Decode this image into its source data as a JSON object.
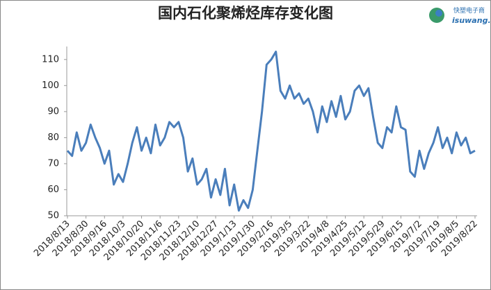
{
  "chart_data": {
    "type": "line",
    "title": "国内石化聚烯烃库存变化图",
    "logo_text": "快塑电子商",
    "logo_url": "isuwang.c",
    "categories": [
      "2018/8/13",
      null,
      null,
      null,
      "2018/8/30",
      null,
      null,
      null,
      "2018/9/16",
      null,
      null,
      null,
      "2018/10/3",
      null,
      null,
      null,
      "2018/10/20",
      null,
      null,
      null,
      "2018/11/6",
      null,
      null,
      null,
      "2018/11/23",
      null,
      null,
      null,
      "2018/12/10",
      null,
      null,
      null,
      "2018/12/27",
      null,
      null,
      null,
      "2019/1/13",
      null,
      null,
      null,
      "2019/1/30",
      null,
      null,
      null,
      "2019/2/16",
      null,
      null,
      null,
      "2019/3/5",
      null,
      null,
      null,
      "2019/3/22",
      null,
      null,
      null,
      "2019/4/8",
      null,
      null,
      null,
      "2019/4/25",
      null,
      null,
      null,
      "2019/5/12",
      null,
      null,
      null,
      "2019/5/29",
      null,
      null,
      null,
      "2019/6/15",
      null,
      null,
      null,
      "2019/7/2",
      null,
      null,
      null,
      "2019/7/19",
      null,
      null,
      null,
      "2019/8/5",
      null,
      null,
      null,
      "2019/8/22"
    ],
    "values": [
      75,
      73,
      82,
      75,
      78,
      85,
      80,
      76,
      70,
      75,
      62,
      66,
      63,
      70,
      78,
      84,
      75,
      80,
      74,
      85,
      77,
      80,
      86,
      84,
      86,
      80,
      67,
      72,
      62,
      64,
      68,
      57,
      64,
      58,
      68,
      54,
      62,
      52,
      56,
      53,
      60,
      75,
      90,
      108,
      110,
      113,
      98,
      95,
      100,
      95,
      97,
      93,
      95,
      90,
      82,
      92,
      86,
      94,
      88,
      96,
      87,
      90,
      98,
      100,
      96,
      99,
      88,
      78,
      76,
      84,
      82,
      92,
      84,
      83,
      67,
      65,
      75,
      68,
      74,
      78,
      84,
      76,
      80,
      74,
      82,
      77,
      80,
      74,
      75
    ],
    "color": "#4a7ebb",
    "ylim": [
      50,
      115
    ],
    "yticks": [
      50,
      60,
      70,
      80,
      90,
      100,
      110
    ],
    "grid": false
  }
}
